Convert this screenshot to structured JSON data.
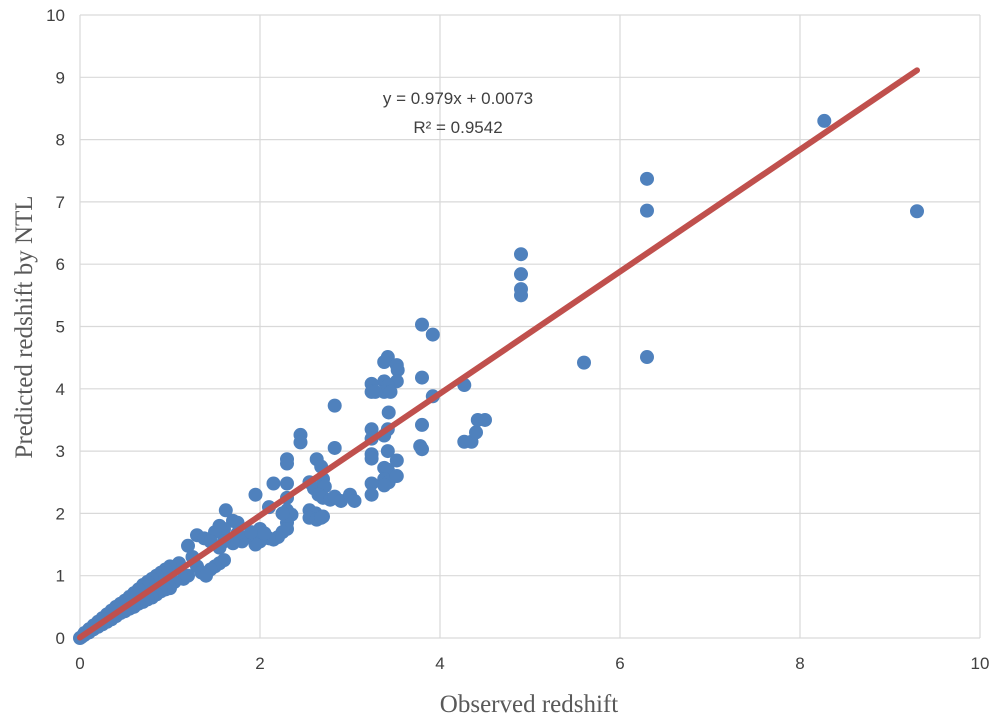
{
  "chart_data": {
    "type": "scatter",
    "xlabel": "Observed redshift",
    "ylabel": "Predicted redshift by NTL",
    "xlim": [
      0,
      10
    ],
    "ylim": [
      0,
      10
    ],
    "x_ticks": [
      "0",
      "2",
      "4",
      "6",
      "8",
      "10"
    ],
    "y_ticks": [
      "0",
      "1",
      "2",
      "3",
      "4",
      "5",
      "6",
      "7",
      "8",
      "9",
      "10"
    ],
    "grid": true,
    "trendline": {
      "slope": 0.979,
      "intercept": 0.0073,
      "x_range": [
        0,
        9.3
      ],
      "equation": "y = 0.979x + 0.0073",
      "r_squared": "R² = 0.9542",
      "color": "#c0504d"
    },
    "marker_color": "#4f81bd",
    "points": [
      [
        9.3,
        6.85
      ],
      [
        8.27,
        8.3
      ],
      [
        6.3,
        7.37
      ],
      [
        6.3,
        6.86
      ],
      [
        6.3,
        4.51
      ],
      [
        5.6,
        4.42
      ],
      [
        4.9,
        6.16
      ],
      [
        4.9,
        5.84
      ],
      [
        4.9,
        5.6
      ],
      [
        4.9,
        5.5
      ],
      [
        3.8,
        5.03
      ],
      [
        3.92,
        4.87
      ],
      [
        4.27,
        4.06
      ],
      [
        3.8,
        4.18
      ],
      [
        3.92,
        3.88
      ],
      [
        3.42,
        4.51
      ],
      [
        3.38,
        4.43
      ],
      [
        3.52,
        4.38
      ],
      [
        3.53,
        4.3
      ],
      [
        3.52,
        4.12
      ],
      [
        3.38,
        4.12
      ],
      [
        3.42,
        4.05
      ],
      [
        3.24,
        4.08
      ],
      [
        3.24,
        3.95
      ],
      [
        3.38,
        3.95
      ],
      [
        3.45,
        3.95
      ],
      [
        3.28,
        3.95
      ],
      [
        3.43,
        3.62
      ],
      [
        3.42,
        3.35
      ],
      [
        3.38,
        3.25
      ],
      [
        3.24,
        3.35
      ],
      [
        3.24,
        3.2
      ],
      [
        3.42,
        3.0
      ],
      [
        3.38,
        2.73
      ],
      [
        3.42,
        2.7
      ],
      [
        3.52,
        2.85
      ],
      [
        3.38,
        2.55
      ],
      [
        3.43,
        2.5
      ],
      [
        3.52,
        2.6
      ],
      [
        3.38,
        2.45
      ],
      [
        3.8,
        3.42
      ],
      [
        3.78,
        3.08
      ],
      [
        3.8,
        3.03
      ],
      [
        4.27,
        3.15
      ],
      [
        4.35,
        3.15
      ],
      [
        4.4,
        3.3
      ],
      [
        4.42,
        3.5
      ],
      [
        4.5,
        3.5
      ],
      [
        3.24,
        2.95
      ],
      [
        3.24,
        2.88
      ],
      [
        3.24,
        2.48
      ],
      [
        3.24,
        2.3
      ],
      [
        2.83,
        3.73
      ],
      [
        2.83,
        3.05
      ],
      [
        2.45,
        3.26
      ],
      [
        2.45,
        3.14
      ],
      [
        2.3,
        2.87
      ],
      [
        2.3,
        2.8
      ],
      [
        2.63,
        2.87
      ],
      [
        2.68,
        2.75
      ],
      [
        2.3,
        2.48
      ],
      [
        2.3,
        2.25
      ],
      [
        2.15,
        2.48
      ],
      [
        2.55,
        2.5
      ],
      [
        2.6,
        2.4
      ],
      [
        2.7,
        2.55
      ],
      [
        2.72,
        2.43
      ],
      [
        2.65,
        2.3
      ],
      [
        2.7,
        2.25
      ],
      [
        2.78,
        2.22
      ],
      [
        2.83,
        2.27
      ],
      [
        2.9,
        2.2
      ],
      [
        3.0,
        2.3
      ],
      [
        3.05,
        2.2
      ],
      [
        2.55,
        2.05
      ],
      [
        2.62,
        2.0
      ],
      [
        2.7,
        1.95
      ],
      [
        2.55,
        1.93
      ],
      [
        2.63,
        1.9
      ],
      [
        2.68,
        1.93
      ],
      [
        2.3,
        2.05
      ],
      [
        2.35,
        1.98
      ],
      [
        2.3,
        1.85
      ],
      [
        2.3,
        1.75
      ],
      [
        2.25,
        1.7
      ],
      [
        2.2,
        1.62
      ],
      [
        2.15,
        1.58
      ],
      [
        2.1,
        1.6
      ],
      [
        2.0,
        1.55
      ],
      [
        1.95,
        1.5
      ],
      [
        1.85,
        1.62
      ],
      [
        1.8,
        1.55
      ],
      [
        1.95,
        2.3
      ],
      [
        2.1,
        2.1
      ],
      [
        2.25,
        2.0
      ],
      [
        2.0,
        1.75
      ],
      [
        1.9,
        1.7
      ],
      [
        2.05,
        1.68
      ],
      [
        1.75,
        1.68
      ],
      [
        1.7,
        1.52
      ],
      [
        1.62,
        2.05
      ],
      [
        1.7,
        1.88
      ],
      [
        1.75,
        1.85
      ],
      [
        1.6,
        1.75
      ],
      [
        1.55,
        1.8
      ],
      [
        1.5,
        1.7
      ],
      [
        1.6,
        1.55
      ],
      [
        1.55,
        1.45
      ],
      [
        1.6,
        1.25
      ],
      [
        1.55,
        1.2
      ],
      [
        1.5,
        1.15
      ],
      [
        1.45,
        1.1
      ],
      [
        1.3,
        1.65
      ],
      [
        1.38,
        1.6
      ],
      [
        1.45,
        1.55
      ],
      [
        1.2,
        1.48
      ],
      [
        1.25,
        1.3
      ],
      [
        1.3,
        1.15
      ],
      [
        1.35,
        1.05
      ],
      [
        1.4,
        1.0
      ],
      [
        1.2,
        1.0
      ],
      [
        1.15,
        0.95
      ],
      [
        1.05,
        0.9
      ],
      [
        1.1,
        1.2
      ],
      [
        1.0,
        0.8
      ],
      [
        0.95,
        0.78
      ],
      [
        0.9,
        0.75
      ],
      [
        0.85,
        0.7
      ],
      [
        0.8,
        0.65
      ],
      [
        0.75,
        0.62
      ],
      [
        0.7,
        0.58
      ],
      [
        0.65,
        0.55
      ],
      [
        0.6,
        0.5
      ],
      [
        0.55,
        0.47
      ],
      [
        0.5,
        0.43
      ],
      [
        0.45,
        0.4
      ],
      [
        0.4,
        0.35
      ],
      [
        0.35,
        0.3
      ],
      [
        0.3,
        0.26
      ],
      [
        0.25,
        0.22
      ],
      [
        0.2,
        0.18
      ],
      [
        0.15,
        0.14
      ],
      [
        0.1,
        0.09
      ],
      [
        0.05,
        0.05
      ],
      [
        0.02,
        0.02
      ],
      [
        0.0,
        0.0
      ],
      [
        1.0,
        1.15
      ],
      [
        0.95,
        1.1
      ],
      [
        0.9,
        1.05
      ],
      [
        0.85,
        1.0
      ],
      [
        0.8,
        0.95
      ],
      [
        0.75,
        0.9
      ],
      [
        0.7,
        0.85
      ],
      [
        0.65,
        0.78
      ],
      [
        0.6,
        0.72
      ],
      [
        0.55,
        0.66
      ],
      [
        0.5,
        0.6
      ],
      [
        0.45,
        0.55
      ],
      [
        0.4,
        0.5
      ],
      [
        0.35,
        0.44
      ],
      [
        0.3,
        0.38
      ],
      [
        0.25,
        0.32
      ],
      [
        0.2,
        0.26
      ],
      [
        0.15,
        0.2
      ],
      [
        0.1,
        0.14
      ],
      [
        0.05,
        0.08
      ]
    ]
  }
}
